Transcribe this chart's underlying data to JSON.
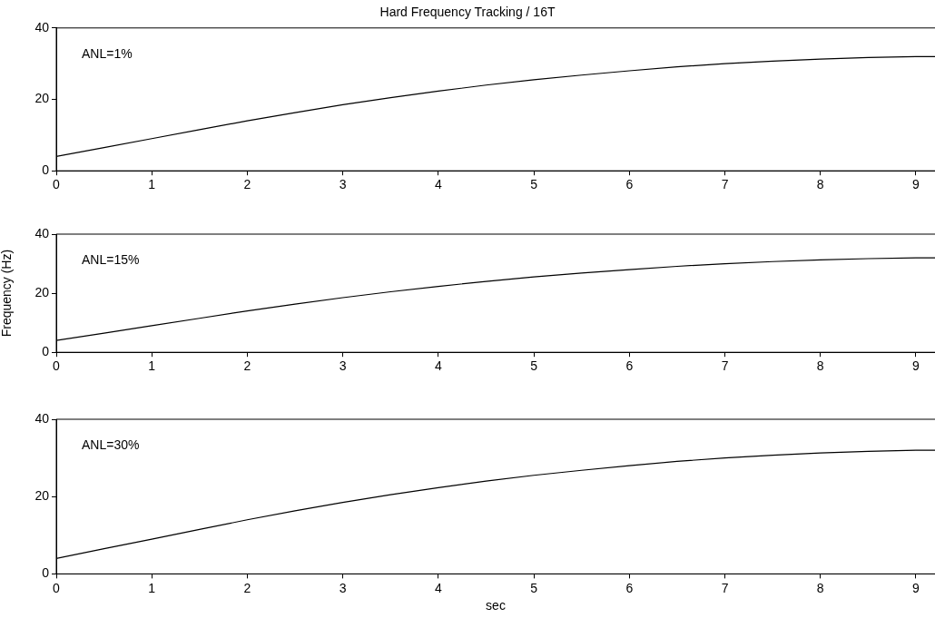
{
  "chart_data": [
    {
      "type": "line",
      "title": "Hard Frequency Tracking / 16T",
      "annotations": [
        "ANL=1%"
      ],
      "x": [
        0,
        0.5,
        1,
        1.5,
        2,
        2.5,
        3,
        3.5,
        4,
        4.5,
        5,
        5.5,
        6,
        6.5,
        7,
        7.5,
        8,
        8.5,
        9,
        9.2
      ],
      "series": [
        {
          "color": "#000000",
          "values": [
            4,
            6.5,
            9,
            11.5,
            14,
            16.3,
            18.5,
            20.5,
            22.3,
            24,
            25.5,
            26.8,
            28,
            29.1,
            30,
            30.7,
            31.3,
            31.7,
            32,
            32
          ]
        }
      ],
      "xlim": [
        0,
        9.2
      ],
      "xticks": [
        0,
        1,
        2,
        3,
        4,
        5,
        6,
        7,
        8,
        9
      ],
      "ylim": [
        0,
        40
      ],
      "yticks": [
        0,
        20,
        40
      ]
    },
    {
      "type": "line",
      "ylabel": "Frequency (Hz)",
      "annotations": [
        "ANL=15%"
      ],
      "x": [
        0,
        0.5,
        1,
        1.5,
        2,
        2.5,
        3,
        3.5,
        4,
        4.5,
        5,
        5.5,
        6,
        6.5,
        7,
        7.5,
        8,
        8.5,
        9,
        9.2
      ],
      "series": [
        {
          "color": "#000000",
          "values": [
            4,
            6.5,
            9,
            11.5,
            14,
            16.3,
            18.5,
            20.5,
            22.3,
            24,
            25.5,
            26.8,
            28,
            29.1,
            30,
            30.7,
            31.3,
            31.7,
            32,
            32
          ]
        }
      ],
      "xlim": [
        0,
        9.2
      ],
      "xticks": [
        0,
        1,
        2,
        3,
        4,
        5,
        6,
        7,
        8,
        9
      ],
      "ylim": [
        0,
        40
      ],
      "yticks": [
        0,
        20,
        40
      ]
    },
    {
      "type": "line",
      "xlabel": "sec",
      "annotations": [
        "ANL=30%"
      ],
      "x": [
        0,
        0.5,
        1,
        1.5,
        2,
        2.5,
        3,
        3.5,
        4,
        4.5,
        5,
        5.5,
        6,
        6.5,
        7,
        7.5,
        8,
        8.5,
        9,
        9.2
      ],
      "series": [
        {
          "color": "#000000",
          "values": [
            4,
            6.5,
            9,
            11.5,
            14,
            16.3,
            18.5,
            20.5,
            22.3,
            24,
            25.5,
            26.8,
            28,
            29.1,
            30,
            30.7,
            31.3,
            31.7,
            32,
            32
          ]
        }
      ],
      "xlim": [
        0,
        9.2
      ],
      "xticks": [
        0,
        1,
        2,
        3,
        4,
        5,
        6,
        7,
        8,
        9
      ],
      "ylim": [
        0,
        40
      ],
      "yticks": [
        0,
        20,
        40
      ]
    }
  ]
}
